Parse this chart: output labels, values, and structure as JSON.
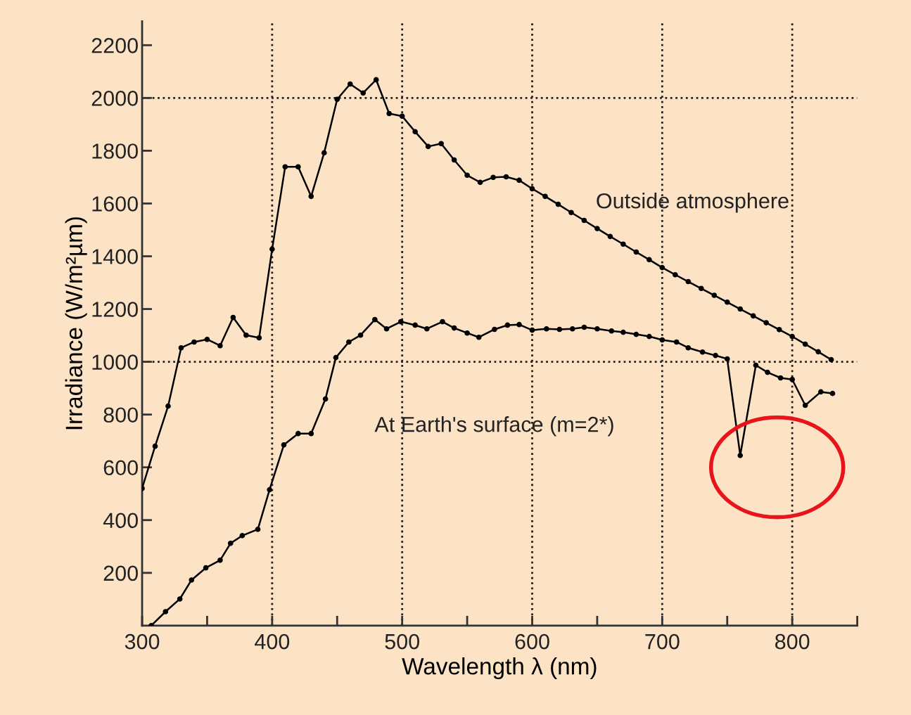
{
  "chart_data": {
    "type": "line",
    "xlabel": "Wavelength λ (nm)",
    "ylabel": "Irradiance (W/m²µm)",
    "xlim": [
      300,
      850
    ],
    "ylim": [
      0,
      2290
    ],
    "xticks": [
      300,
      {
        "value": 350,
        "label": null
      },
      400,
      {
        "value": 450,
        "label": null
      },
      500,
      {
        "value": 550,
        "label": null
      },
      600,
      {
        "value": 650,
        "label": null
      },
      700,
      {
        "value": 750,
        "label": null
      },
      800,
      {
        "value": 850,
        "label": null
      }
    ],
    "yticks": [
      200,
      400,
      600,
      800,
      1000,
      1200,
      1400,
      1600,
      1800,
      2000,
      2200
    ],
    "grid": false,
    "marker": "circle",
    "line_style": "solid",
    "ref_lines": [
      {
        "axis": "x",
        "value": 400,
        "line_style": "dotted"
      },
      {
        "axis": "x",
        "value": 500,
        "line_style": "dotted"
      },
      {
        "axis": "x",
        "value": 600,
        "line_style": "dotted"
      },
      {
        "axis": "x",
        "value": 700,
        "line_style": "dotted"
      },
      {
        "axis": "x",
        "value": 800,
        "line_style": "dotted"
      },
      {
        "axis": "y",
        "value": 1000,
        "line_style": "dotted"
      },
      {
        "axis": "y",
        "value": 2000,
        "line_style": "dotted"
      }
    ],
    "series": [
      {
        "name": "Outside atmosphere",
        "color": "#000000",
        "x": [
          300,
          310,
          320,
          330,
          340,
          350,
          360,
          370,
          380,
          390,
          400,
          410,
          420,
          430,
          440,
          450,
          460,
          470,
          480,
          490,
          500,
          510,
          520,
          530,
          540,
          550,
          560,
          570,
          580,
          590,
          600,
          610,
          620,
          630,
          640,
          650,
          660,
          670,
          680,
          690,
          700,
          710,
          720,
          730,
          740,
          750,
          760,
          770,
          780,
          790,
          800,
          810,
          820,
          830
        ],
        "values": [
          520,
          680,
          832,
          1053,
          1075,
          1085,
          1061,
          1168,
          1101,
          1091,
          1427,
          1739,
          1739,
          1627,
          1792,
          1995,
          2053,
          2019,
          2069,
          1941,
          1931,
          1872,
          1816,
          1827,
          1765,
          1707,
          1680,
          1699,
          1701,
          1688,
          1656,
          1627,
          1597,
          1566,
          1536,
          1505,
          1475,
          1446,
          1416,
          1387,
          1357,
          1330,
          1304,
          1278,
          1252,
          1226,
          1200,
          1174,
          1148,
          1122,
          1096,
          1067,
          1038,
          1008
        ]
      },
      {
        "name": "At Earth's surface (m=2*)",
        "color": "#000000",
        "x": [
          307,
          318,
          329,
          338,
          349,
          360,
          368,
          377,
          389,
          398,
          409,
          420,
          430,
          441,
          449,
          459,
          468,
          479,
          488,
          499,
          510,
          519,
          531,
          540,
          550,
          559,
          571,
          581,
          590,
          600,
          611,
          621,
          631,
          640,
          650,
          661,
          670,
          680,
          690,
          700,
          711,
          720,
          731,
          741,
          750,
          760,
          772,
          781,
          791,
          800,
          810,
          822,
          831
        ],
        "values": [
          0,
          53,
          101,
          173,
          219,
          248,
          312,
          341,
          365,
          515,
          685,
          728,
          728,
          859,
          1016,
          1075,
          1101,
          1160,
          1125,
          1152,
          1139,
          1125,
          1152,
          1128,
          1109,
          1093,
          1123,
          1139,
          1141,
          1120,
          1125,
          1123,
          1125,
          1131,
          1125,
          1117,
          1112,
          1104,
          1096,
          1083,
          1075,
          1053,
          1037,
          1024,
          1011,
          645,
          987,
          960,
          939,
          933,
          835,
          886,
          880
        ]
      }
    ]
  }
}
